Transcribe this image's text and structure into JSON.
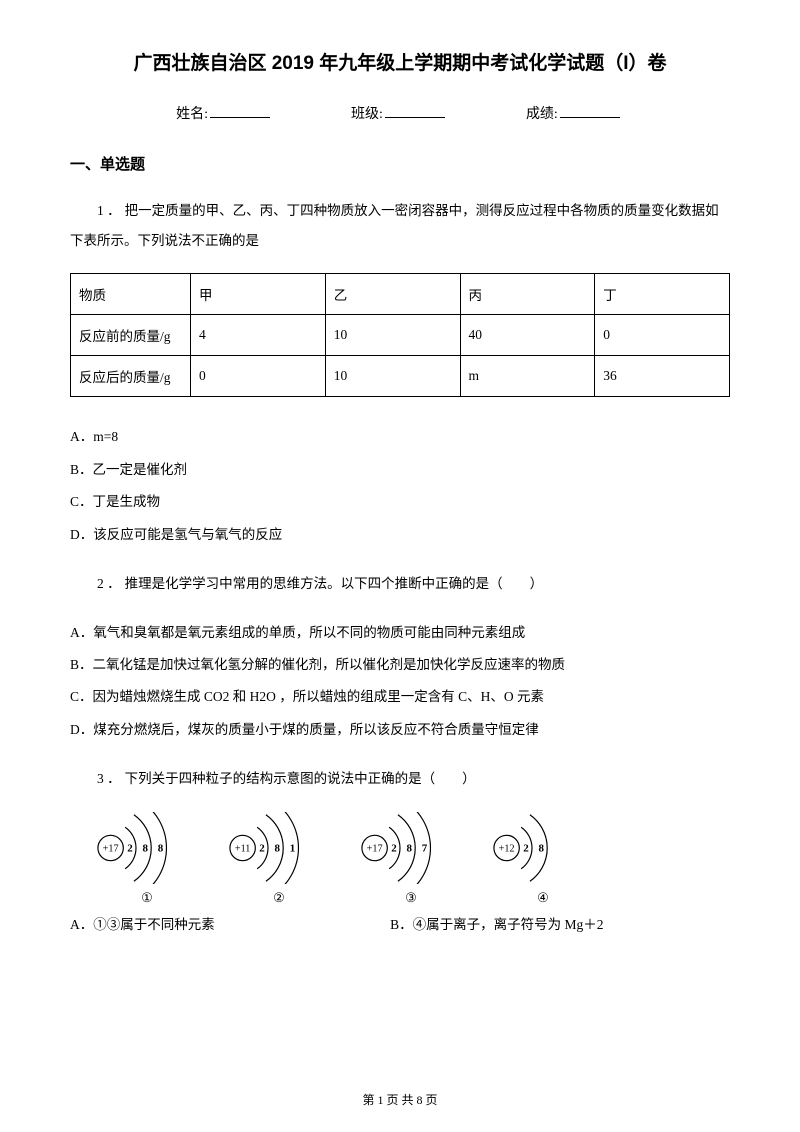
{
  "title": "广西壮族自治区 2019 年九年级上学期期中考试化学试题（I）卷",
  "info": {
    "name_label": "姓名:",
    "class_label": "班级:",
    "score_label": "成绩:"
  },
  "section1": "一、单选题",
  "q1": {
    "num": "1 ．",
    "text": "把一定质量的甲、乙、丙、丁四种物质放入一密闭容器中，测得反应过程中各物质的质量变化数据如下表所示。下列说法不正确的是",
    "table": {
      "headers": [
        "物质",
        "甲",
        "乙",
        "丙",
        "丁"
      ],
      "row1_label": "反应前的质量/g",
      "row1": [
        "4",
        "10",
        "40",
        "0"
      ],
      "row2_label": "反应后的质量/g",
      "row2": [
        "0",
        "10",
        "m",
        "36"
      ]
    },
    "opts": {
      "A": "A．m=8",
      "B": "B．乙一定是催化剂",
      "C": "C．丁是生成物",
      "D": "D．该反应可能是氢气与氧气的反应"
    }
  },
  "q2": {
    "num": "2 ．",
    "text": "推理是化学学习中常用的思维方法。以下四个推断中正确的是（　　）",
    "opts": {
      "A": "A．氧气和臭氧都是氧元素组成的单质，所以不同的物质可能由同种元素组成",
      "B": "B．二氧化锰是加快过氧化氢分解的催化剂，所以催化剂是加快化学反应速率的物质",
      "C": "C．因为蜡烛燃烧生成 CO2 和 H2O ，所以蜡烛的组成里一定含有 C、H、O 元素",
      "D": "D．煤充分燃烧后，煤灰的质量小于煤的质量，所以该反应不符合质量守恒定律"
    }
  },
  "q3": {
    "num": "3 ．",
    "text": "下列关于四种粒子的结构示意图的说法中正确的是（　　）",
    "atoms": [
      {
        "nucleus": "+17",
        "shells": [
          "2",
          "8",
          "8"
        ],
        "label": "①"
      },
      {
        "nucleus": "+11",
        "shells": [
          "2",
          "8",
          "1"
        ],
        "label": "②"
      },
      {
        "nucleus": "+17",
        "shells": [
          "2",
          "8",
          "7"
        ],
        "label": "③"
      },
      {
        "nucleus": "+12",
        "shells": [
          "2",
          "8"
        ],
        "label": "④"
      }
    ],
    "opts": {
      "A": "A．①③属于不同种元素",
      "B": "B．④属于离子，离子符号为 Mg＋2"
    }
  },
  "footer": "第 1 页 共 8 页",
  "style": {
    "text_color": "#000000",
    "bg_color": "#ffffff",
    "title_fontsize": 19,
    "body_fontsize": 13.5,
    "line_height": 2.2,
    "atom_arc_stroke": "#000000",
    "atom_arc_width": 1.4
  }
}
